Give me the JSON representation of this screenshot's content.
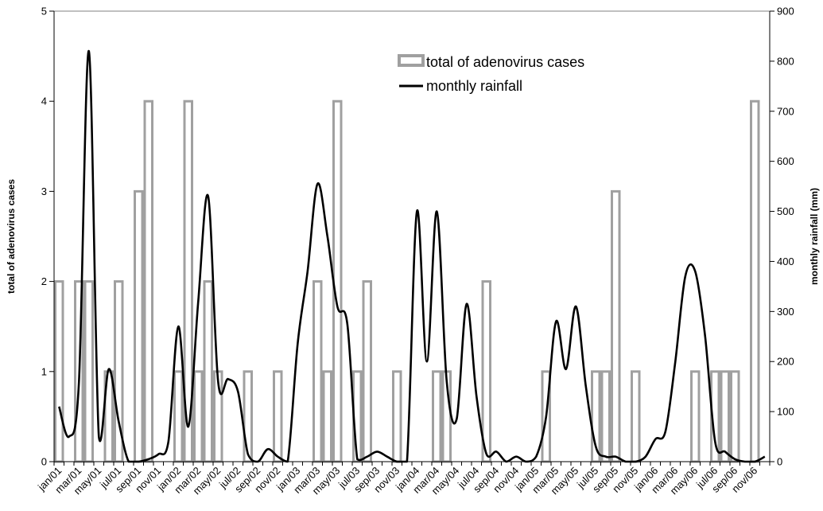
{
  "chart_data": {
    "type": "bar+line",
    "categories": [
      "jan/01",
      "feb/01",
      "mar/01",
      "apr/01",
      "may/01",
      "jun/01",
      "jul/01",
      "aug/01",
      "sep/01",
      "oct/01",
      "nov/01",
      "dec/01",
      "jan/02",
      "feb/02",
      "mar/02",
      "apr/02",
      "may/02",
      "jun/02",
      "jul/02",
      "aug/02",
      "sep/02",
      "oct/02",
      "nov/02",
      "dec/02",
      "jan/03",
      "feb/03",
      "mar/03",
      "apr/03",
      "may/03",
      "jun/03",
      "jul/03",
      "aug/03",
      "sep/03",
      "oct/03",
      "nov/03",
      "dec/03",
      "jan/04",
      "feb/04",
      "mar/04",
      "apr/04",
      "may/04",
      "jun/04",
      "jul/04",
      "aug/04",
      "sep/04",
      "oct/04",
      "nov/04",
      "dec/04",
      "jan/05",
      "feb/05",
      "mar/05",
      "apr/05",
      "may/05",
      "jun/05",
      "jul/05",
      "aug/05",
      "sep/05",
      "oct/05",
      "nov/05",
      "dec/05",
      "jan/06",
      "feb/06",
      "mar/06",
      "apr/06",
      "may/06",
      "jun/06",
      "jul/06",
      "aug/06",
      "sep/06",
      "oct/06",
      "nov/06",
      "dec/06"
    ],
    "tick_labels": [
      "jan/01",
      "mar/01",
      "may/01",
      "jul/01",
      "sep/01",
      "nov/01",
      "jan/02",
      "mar/02",
      "may/02",
      "jul/02",
      "sep/02",
      "nov/02",
      "jan/03",
      "mar/03",
      "may/03",
      "jul/03",
      "sep/03",
      "nov/03",
      "jan/04",
      "mar/04",
      "may/04",
      "jul/04",
      "sep/04",
      "nov/04",
      "jan/05",
      "mar/05",
      "may/05",
      "jul/05",
      "sep/05",
      "nov/05",
      "jan/06",
      "mar/06",
      "may/06",
      "jul/06",
      "sep/06",
      "nov/06"
    ],
    "series": [
      {
        "name": "total of adenovirus cases",
        "kind": "bar",
        "axis": "left",
        "color": "#a0a0a0",
        "values": [
          2,
          0,
          2,
          2,
          0,
          1,
          2,
          0,
          3,
          4,
          0,
          0,
          1,
          4,
          1,
          2,
          1,
          0,
          0,
          1,
          0,
          0,
          1,
          0,
          0,
          0,
          2,
          1,
          4,
          0,
          1,
          2,
          0,
          0,
          1,
          0,
          0,
          0,
          1,
          1,
          0,
          0,
          0,
          2,
          0,
          0,
          0,
          0,
          0,
          1,
          0,
          0,
          0,
          0,
          1,
          1,
          3,
          0,
          1,
          0,
          0,
          0,
          0,
          0,
          1,
          0,
          1,
          1,
          1,
          0,
          4,
          0
        ]
      },
      {
        "name": "monthly rainfall",
        "kind": "line",
        "axis": "right",
        "color": "#000000",
        "values": [
          110,
          50,
          160,
          820,
          50,
          185,
          80,
          0,
          0,
          5,
          15,
          40,
          270,
          70,
          320,
          530,
          160,
          165,
          140,
          15,
          0,
          25,
          10,
          0,
          235,
          380,
          555,
          450,
          310,
          275,
          5,
          10,
          20,
          10,
          0,
          0,
          500,
          200,
          500,
          160,
          85,
          315,
          130,
          15,
          20,
          0,
          10,
          0,
          10,
          90,
          280,
          185,
          310,
          150,
          30,
          10,
          10,
          0,
          0,
          10,
          45,
          60,
          200,
          370,
          380,
          250,
          40,
          20,
          5,
          0,
          0,
          10
        ]
      }
    ],
    "y_left": {
      "label": "total of  adenovirus cases",
      "min": 0,
      "max": 5,
      "ticks": [
        "0",
        "1",
        "2",
        "3",
        "4",
        "5"
      ]
    },
    "y_right": {
      "label": "monthly rainfall (mm)",
      "min": 0,
      "max": 900,
      "ticks": [
        "0",
        "100",
        "200",
        "300",
        "400",
        "500",
        "600",
        "700",
        "800",
        "900"
      ]
    },
    "legend": {
      "placement": "top-center",
      "items": [
        "total of adenovirus cases",
        "monthly rainfall"
      ]
    },
    "grid": false
  }
}
